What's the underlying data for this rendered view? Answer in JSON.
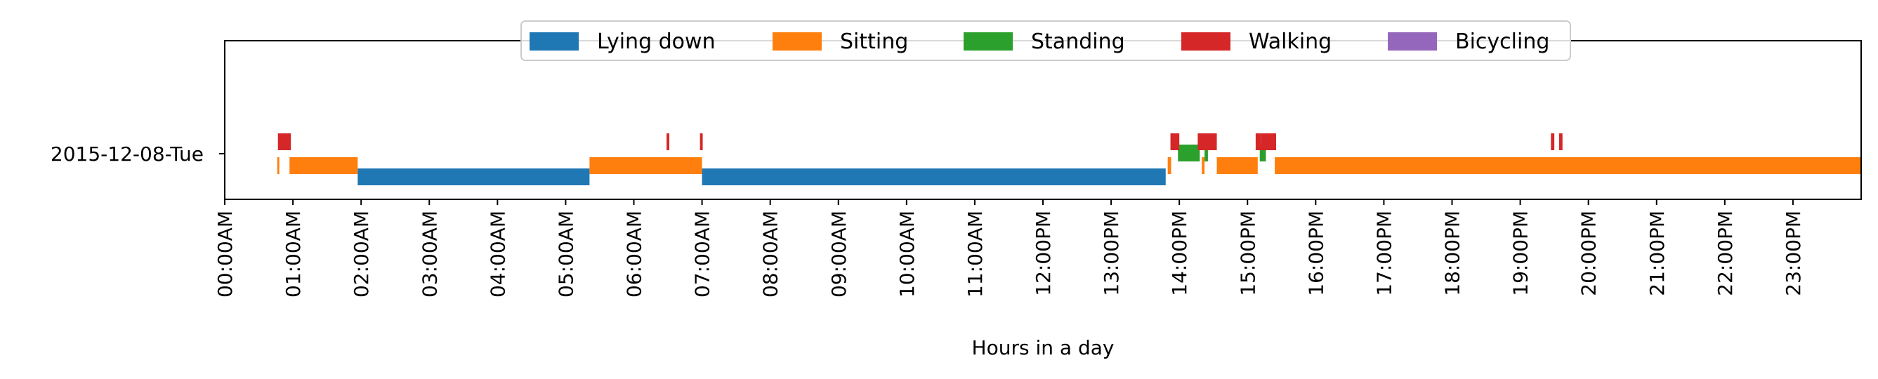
{
  "chart_data": {
    "type": "timeline",
    "xlabel": "Hours in a day",
    "xlim": [
      0,
      24
    ],
    "row_label": "2015-12-08-Tue",
    "x_ticks": [
      {
        "value": 0,
        "label": "00:00AM"
      },
      {
        "value": 1,
        "label": "01:00AM"
      },
      {
        "value": 2,
        "label": "02:00AM"
      },
      {
        "value": 3,
        "label": "03:00AM"
      },
      {
        "value": 4,
        "label": "04:00AM"
      },
      {
        "value": 5,
        "label": "05:00AM"
      },
      {
        "value": 6,
        "label": "06:00AM"
      },
      {
        "value": 7,
        "label": "07:00AM"
      },
      {
        "value": 8,
        "label": "08:00AM"
      },
      {
        "value": 9,
        "label": "09:00AM"
      },
      {
        "value": 10,
        "label": "10:00AM"
      },
      {
        "value": 11,
        "label": "11:00AM"
      },
      {
        "value": 12,
        "label": "12:00PM"
      },
      {
        "value": 13,
        "label": "13:00PM"
      },
      {
        "value": 14,
        "label": "14:00PM"
      },
      {
        "value": 15,
        "label": "15:00PM"
      },
      {
        "value": 16,
        "label": "16:00PM"
      },
      {
        "value": 17,
        "label": "17:00PM"
      },
      {
        "value": 18,
        "label": "18:00PM"
      },
      {
        "value": 19,
        "label": "19:00PM"
      },
      {
        "value": 20,
        "label": "20:00PM"
      },
      {
        "value": 21,
        "label": "21:00PM"
      },
      {
        "value": 22,
        "label": "22:00PM"
      },
      {
        "value": 23,
        "label": "23:00PM"
      }
    ],
    "legend": {
      "placement": "top-center",
      "entries": [
        {
          "name": "Lying down",
          "color": "#1f77b4"
        },
        {
          "name": "Sitting",
          "color": "#ff7f0e"
        },
        {
          "name": "Standing",
          "color": "#2ca02c"
        },
        {
          "name": "Walking",
          "color": "#d62728"
        },
        {
          "name": "Bicycling",
          "color": "#9467bd"
        }
      ]
    },
    "series": [
      {
        "name": "Lying down",
        "color": "#1f77b4",
        "segments": [
          [
            1.95,
            5.35
          ],
          [
            7.0,
            13.8
          ]
        ]
      },
      {
        "name": "Sitting",
        "color": "#ff7f0e",
        "segments": [
          [
            0.77,
            0.8
          ],
          [
            0.95,
            1.95
          ],
          [
            5.35,
            7.0
          ],
          [
            13.83,
            13.88
          ],
          [
            14.33,
            14.37
          ],
          [
            14.55,
            15.15
          ],
          [
            15.4,
            24.0
          ]
        ]
      },
      {
        "name": "Standing",
        "color": "#2ca02c",
        "segments": [
          [
            13.98,
            14.3
          ],
          [
            14.37,
            14.42
          ],
          [
            15.18,
            15.27
          ]
        ]
      },
      {
        "name": "Walking",
        "color": "#d62728",
        "segments": [
          [
            0.78,
            0.97
          ],
          [
            6.48,
            6.52
          ],
          [
            6.97,
            7.01
          ],
          [
            13.87,
            14.0
          ],
          [
            14.27,
            14.35
          ],
          [
            14.33,
            14.55
          ],
          [
            15.12,
            15.2
          ],
          [
            15.2,
            15.42
          ],
          [
            19.45,
            19.5
          ],
          [
            19.57,
            19.62
          ]
        ]
      },
      {
        "name": "Bicycling",
        "color": "#9467bd",
        "segments": []
      }
    ]
  }
}
